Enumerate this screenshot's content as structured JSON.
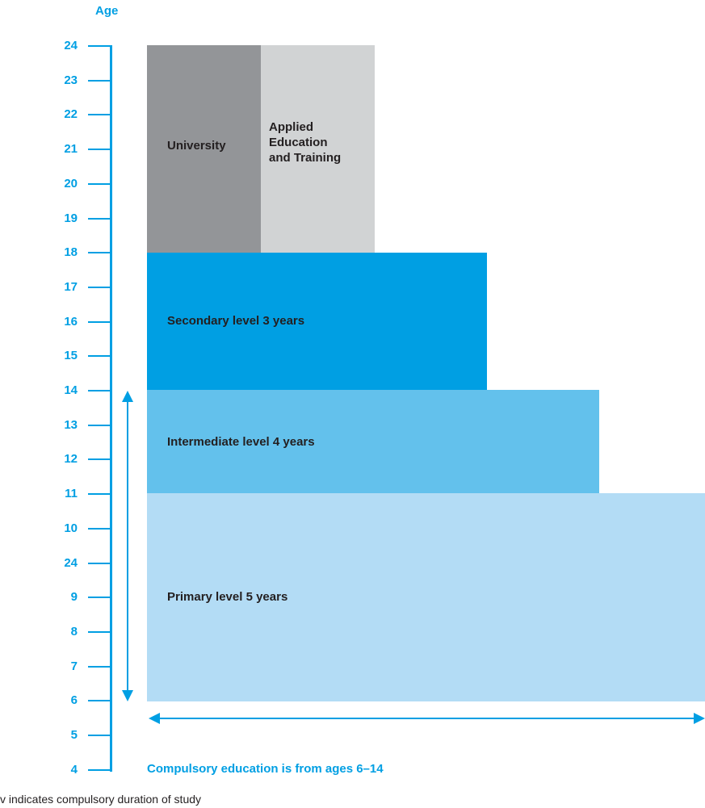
{
  "colors": {
    "accent": "#009fe3",
    "university": "#939598",
    "applied": "#d1d3d4",
    "secondary": "#009fe3",
    "intermediate": "#63c1ec",
    "primary": "#b3dcf5",
    "text": "#231f20"
  },
  "axis": {
    "title": "Age",
    "ticks": [
      "24",
      "23",
      "22",
      "21",
      "20",
      "19",
      "18",
      "17",
      "16",
      "15",
      "14",
      "13",
      "12",
      "11",
      "10",
      "24",
      "9",
      "8",
      "7",
      "6",
      "5",
      "4"
    ]
  },
  "blocks": {
    "university": "University",
    "applied": "Applied\nEducation\nand Training",
    "secondary": "Secondary level 3 years",
    "intermediate": "Intermediate level 4 years",
    "primary": "Primary level 5 years"
  },
  "caption": "Compulsory education is from ages 6–14",
  "footnote": "v indicates compulsory duration of study"
}
